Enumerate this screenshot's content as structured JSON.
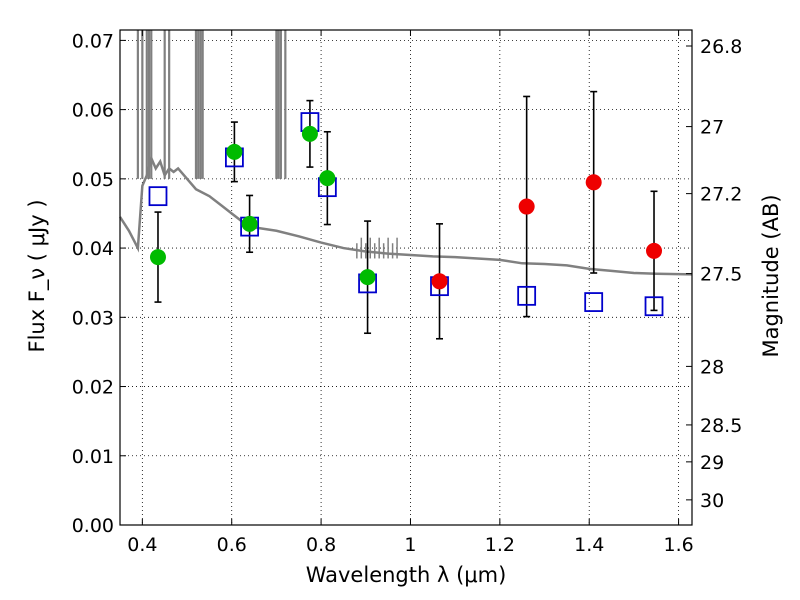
{
  "chart_data": {
    "type": "scatter",
    "xlabel": "Wavelength  λ (μm)",
    "ylabel": "Flux  F_ν  ( μJy )",
    "ylabel_right": "Magnitude (AB)",
    "xlim": [
      0.35,
      1.63
    ],
    "ylim": [
      0.0,
      0.0715
    ],
    "xticks": [
      0.4,
      0.6,
      0.8,
      1.0,
      1.2,
      1.4,
      1.6
    ],
    "xtick_labels": [
      "0.4",
      "0.6",
      "0.8",
      "1",
      "1.2",
      "1.4",
      "1.6"
    ],
    "yticks": [
      0.0,
      0.01,
      0.02,
      0.03,
      0.04,
      0.05,
      0.06,
      0.07
    ],
    "ytick_labels": [
      "0.00",
      "0.01",
      "0.02",
      "0.03",
      "0.04",
      "0.05",
      "0.06",
      "0.07"
    ],
    "mag_ticks": [
      {
        "label": "26.8",
        "value": 26.8
      },
      {
        "label": "27",
        "value": 27.0
      },
      {
        "label": "27.2",
        "value": 27.2
      },
      {
        "label": "27.5",
        "value": 27.5
      },
      {
        "label": "28",
        "value": 28.0
      },
      {
        "label": "28.5",
        "value": 28.5
      },
      {
        "label": "29",
        "value": 29.0
      },
      {
        "label": "30",
        "value": 30.0
      }
    ],
    "grid": true,
    "colors": {
      "green_points": "#00bb00",
      "red_points": "#ee0000",
      "model_squares": "#0000cc",
      "sed_curve": "#808080",
      "errorbars": "#000000"
    },
    "series": [
      {
        "marker": "circle-green",
        "x": [
          0.435,
          0.606,
          0.64,
          0.775,
          0.814,
          0.904
        ],
        "y": [
          0.0387,
          0.0539,
          0.0435,
          0.0565,
          0.0501,
          0.0358
        ],
        "yerr": [
          0.0065,
          0.0043,
          0.0041,
          0.0048,
          0.0067,
          0.0081
        ]
      },
      {
        "marker": "circle-red",
        "x": [
          1.065,
          1.26,
          1.41,
          1.545
        ],
        "y": [
          0.0352,
          0.046,
          0.0495,
          0.0396
        ],
        "yerr": [
          0.0083,
          0.0159,
          0.0131,
          0.0086
        ]
      },
      {
        "marker": "square-blue",
        "x": [
          0.435,
          0.606,
          0.64,
          0.775,
          0.814,
          0.904,
          1.065,
          1.26,
          1.41,
          1.545
        ],
        "y": [
          0.0475,
          0.0531,
          0.0431,
          0.0582,
          0.0488,
          0.0349,
          0.0345,
          0.0331,
          0.0322,
          0.0316
        ]
      },
      {
        "marker": "sed-line",
        "x": [
          0.35,
          0.37,
          0.39,
          0.4,
          0.41,
          0.42,
          0.43,
          0.44,
          0.45,
          0.46,
          0.47,
          0.48,
          0.5,
          0.52,
          0.55,
          0.58,
          0.6,
          0.62,
          0.65,
          0.7,
          0.75,
          0.8,
          0.85,
          0.9,
          0.95,
          1.0,
          1.05,
          1.1,
          1.15,
          1.2,
          1.25,
          1.3,
          1.35,
          1.4,
          1.45,
          1.5,
          1.55,
          1.63
        ],
        "y": [
          0.0445,
          0.0425,
          0.04,
          0.049,
          0.0505,
          0.053,
          0.0515,
          0.0525,
          0.0505,
          0.0515,
          0.051,
          0.0515,
          0.05,
          0.0485,
          0.0475,
          0.046,
          0.045,
          0.044,
          0.043,
          0.0425,
          0.0417,
          0.0408,
          0.04,
          0.0395,
          0.0392,
          0.039,
          0.0388,
          0.0387,
          0.0385,
          0.0383,
          0.0378,
          0.0377,
          0.0375,
          0.037,
          0.0367,
          0.0364,
          0.0363,
          0.0362
        ]
      }
    ]
  }
}
